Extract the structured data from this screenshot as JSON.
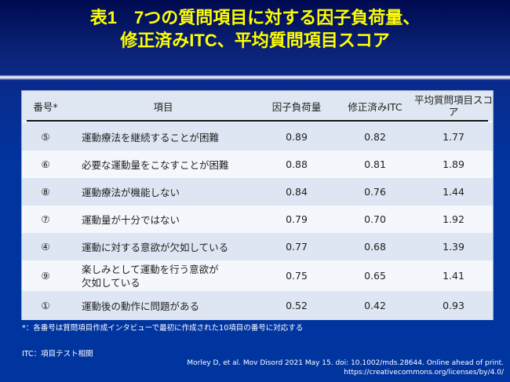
{
  "title": {
    "line1": "表1　7つの質問項目に対する因子負荷量、",
    "line2": "修正済みITC、平均質問項目スコア"
  },
  "table": {
    "headers": {
      "number": "番号*",
      "item": "項目",
      "loading": "因子負荷量",
      "itc": "修正済みITC",
      "mean_score": "平均質問項目スコア"
    },
    "rows": [
      {
        "number": "⑤",
        "item": "運動療法を継続することが困難",
        "loading": "0.89",
        "itc": "0.82",
        "mean": "1.77"
      },
      {
        "number": "⑥",
        "item": "必要な運動量をこなすことが困難",
        "loading": "0.88",
        "itc": "0.81",
        "mean": "1.89"
      },
      {
        "number": "⑧",
        "item": "運動療法が機能しない",
        "loading": "0.84",
        "itc": "0.76",
        "mean": "1.44"
      },
      {
        "number": "⑦",
        "item": "運動量が十分ではない",
        "loading": "0.79",
        "itc": "0.70",
        "mean": "1.92"
      },
      {
        "number": "④",
        "item": "運動に対する意欲が欠如している",
        "loading": "0.77",
        "itc": "0.68",
        "mean": "1.39"
      },
      {
        "number": "⑨",
        "item": "楽しみとして運動を行う意欲が欠如している",
        "loading": "0.75",
        "itc": "0.65",
        "mean": "1.41"
      },
      {
        "number": "①",
        "item": "運動後の動作に問題がある",
        "loading": "0.52",
        "itc": "0.42",
        "mean": "0.93"
      }
    ]
  },
  "footnote": "*：各番号は質問項目作成インタビューで最初に作成された10項目の番号に対応する",
  "abbr": "ITC：項目テスト相関",
  "reference": {
    "citation": "Morley D, et al. Mov Disord 2021 May 15. doi: 10.1002/mds.28644. Online ahead of print.",
    "license": "https://creativecommons.org/licenses/by/4.0/"
  }
}
